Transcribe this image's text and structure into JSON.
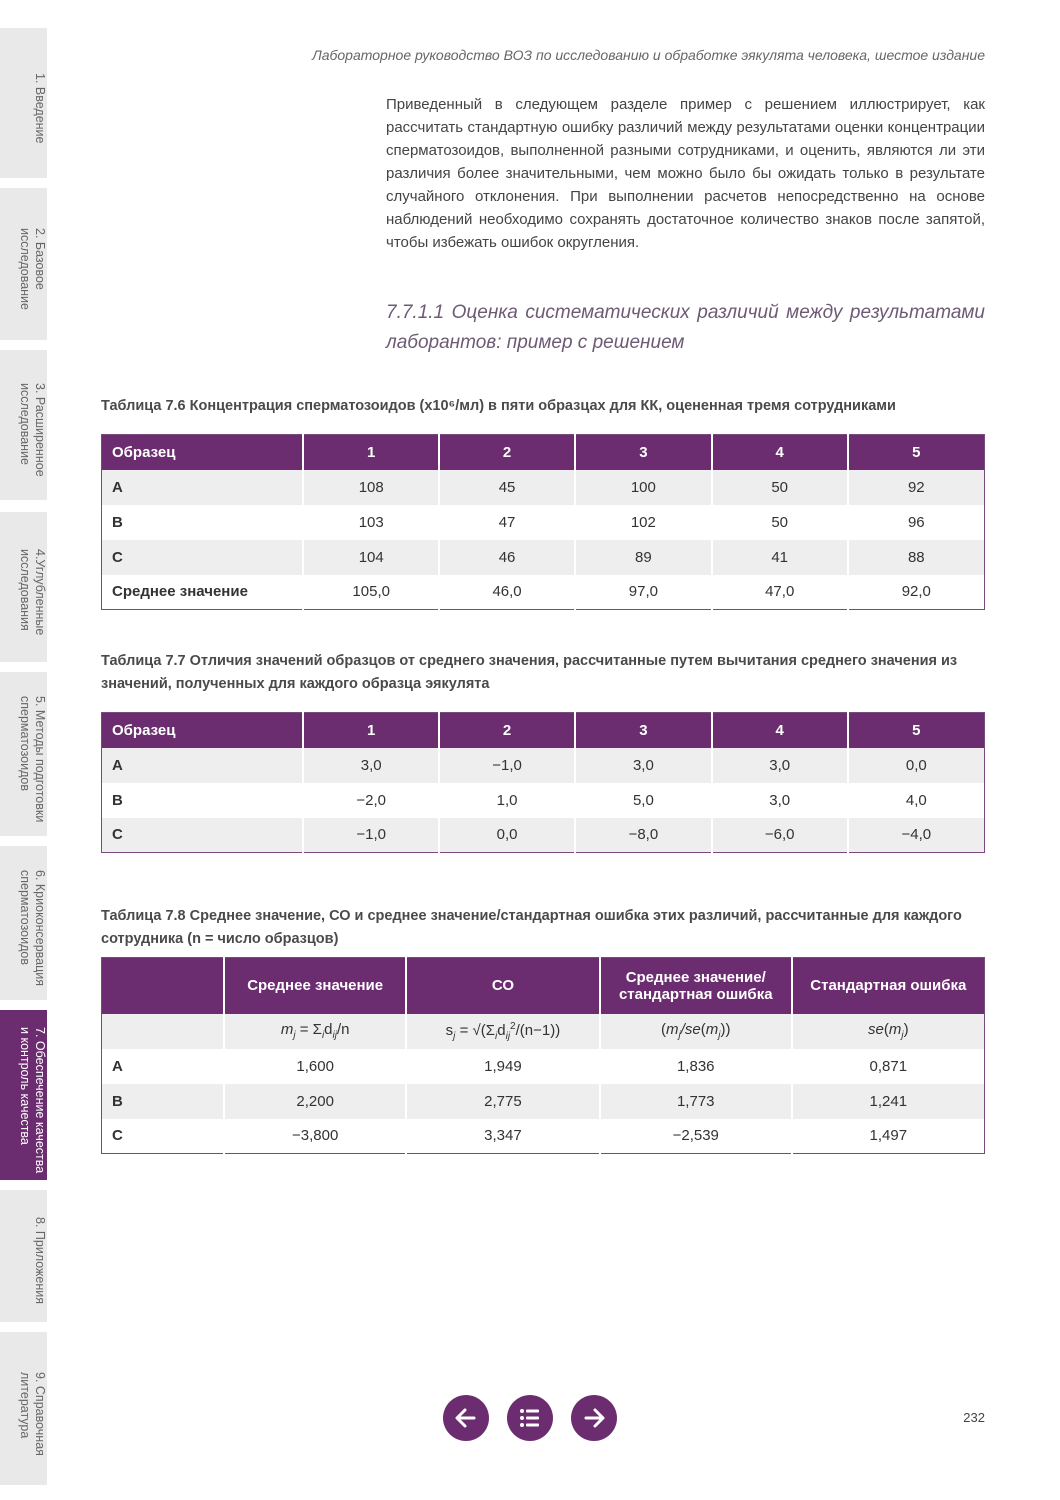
{
  "sidebar": {
    "tabs": [
      {
        "lines": [
          "1. Введение"
        ]
      },
      {
        "lines": [
          "2. Базовое",
          "исследование"
        ]
      },
      {
        "lines": [
          "3. Расширенное",
          "исследование"
        ]
      },
      {
        "lines": [
          "4.Углубленные",
          "исследования"
        ]
      },
      {
        "lines": [
          "5. Методы подготовки",
          "сперматозоидов"
        ]
      },
      {
        "lines": [
          "6. Криоконсервация",
          "сперматозоидов"
        ]
      },
      {
        "lines": [
          "7. Обеспечение качества",
          "и контроль качества"
        ],
        "active": true
      },
      {
        "lines": [
          "8. Приложения"
        ]
      },
      {
        "lines": [
          "9. Справочная",
          "литература"
        ]
      }
    ]
  },
  "header": {
    "title": "Лабораторное руководство ВОЗ по исследованию и обработке эякулята человека, шестое издание"
  },
  "body": {
    "paragraph": "Приведенный в следующем разделе пример с решением иллюстрирует, как рассчитать стандартную ошибку различий между результатами оценки концентрации сперматозоидов, выполненной разными сотрудниками, и оценить, являются ли эти различия более значительными, чем можно было бы ожидать только в результате случайного отклонения. При выполнении расчетов непосредственно на основе наблюдений необходимо сохранять достаточное количество знаков после запятой, чтобы избежать ошибок округления.",
    "section_heading": "7.7.1.1 Оценка систематических различий между результатами лаборантов: пример с решением"
  },
  "tables": [
    {
      "caption": "Таблица 7.6 Концентрация сперматозоидов (x10⁶/мл) в пяти образцах для КК, оцененная тремя сотрудниками",
      "header": [
        "Образец",
        "1",
        "2",
        "3",
        "4",
        "5"
      ],
      "rows": [
        [
          "A",
          "108",
          "45",
          "100",
          "50",
          "92"
        ],
        [
          "B",
          "103",
          "47",
          "102",
          "50",
          "96"
        ],
        [
          "C",
          "104",
          "46",
          "89",
          "41",
          "88"
        ],
        [
          "Среднее значение",
          "105,0",
          "46,0",
          "97,0",
          "47,0",
          "92,0"
        ]
      ]
    },
    {
      "caption": "Таблица 7.7 Отличия значений образцов от среднего значения, рассчитанные путем вычитания среднего значения из значений, полученных для каждого образца эякулята",
      "header": [
        "Образец",
        "1",
        "2",
        "3",
        "4",
        "5"
      ],
      "rows": [
        [
          "A",
          "3,0",
          "−1,0",
          "3,0",
          "3,0",
          "0,0"
        ],
        [
          "B",
          "−2,0",
          "1,0",
          "5,0",
          "3,0",
          "4,0"
        ],
        [
          "C",
          "−1,0",
          "0,0",
          "−8,0",
          "−6,0",
          "−4,0"
        ]
      ]
    },
    {
      "caption": "Таблица 7.8 Среднее значение, СО и среднее значение/стандартная ошибка этих различий, рассчитанные для каждого сотрудника (n = число образцов)",
      "header": [
        "Среднее значение",
        "СО",
        "Среднее значение/ стандартная ошибка",
        "Стандартная ошибка"
      ],
      "formula_row": [
        [
          {
            "i": "m"
          },
          {
            "sub": "j"
          },
          {
            "t": " = Σ"
          },
          {
            "sub": "i"
          },
          {
            "t": "d"
          },
          {
            "sub": "ij"
          },
          {
            "t": "/n"
          }
        ],
        [
          {
            "t": "s"
          },
          {
            "sub": "j"
          },
          {
            "t": " = √(Σ"
          },
          {
            "sub": "i"
          },
          {
            "t": "d"
          },
          {
            "sub": "ij"
          },
          {
            "sup": "2"
          },
          {
            "t": "/(n−1))"
          }
        ],
        [
          {
            "t": "("
          },
          {
            "i": "m"
          },
          {
            "sub": "j"
          },
          {
            "i": "/se"
          },
          {
            "t": "("
          },
          {
            "i": "m"
          },
          {
            "sub": "j"
          },
          {
            "t": "))"
          }
        ],
        [
          {
            "i": "se"
          },
          {
            "t": "("
          },
          {
            "i": "m"
          },
          {
            "sub": "j"
          },
          {
            "t": ")"
          }
        ]
      ],
      "rows": [
        [
          "A",
          "1,600",
          "1,949",
          "1,836",
          "0,871"
        ],
        [
          "B",
          "2,200",
          "2,775",
          "1,773",
          "1,241"
        ],
        [
          "C",
          "−3,800",
          "3,347",
          "−2,539",
          "1,497"
        ]
      ]
    }
  ],
  "footer": {
    "page_number": "232"
  }
}
